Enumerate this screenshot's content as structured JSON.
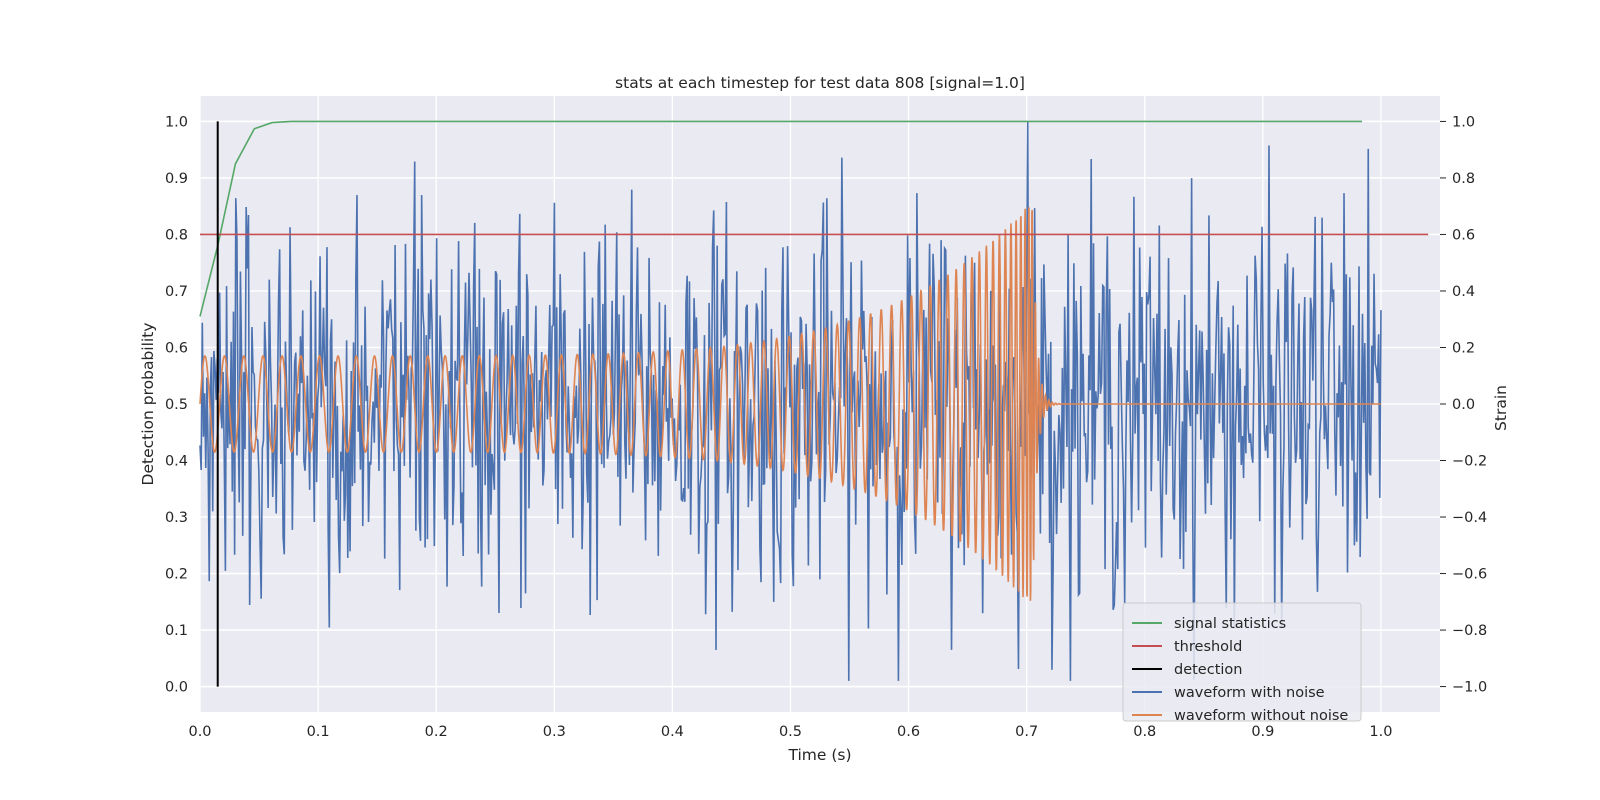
{
  "chart_data": {
    "type": "line",
    "title": "stats at each timestep for test data 808 [signal=1.0]",
    "xlabel": "Time (s)",
    "ylabel": "Detection probability",
    "y2label": "Strain",
    "xlim": [
      0.0,
      1.05
    ],
    "ylim": [
      -0.045,
      1.045
    ],
    "y2lim": [
      -1.09,
      1.09
    ],
    "x_ticks": [
      "0.0",
      "0.1",
      "0.2",
      "0.3",
      "0.4",
      "0.5",
      "0.6",
      "0.7",
      "0.8",
      "0.9",
      "1.0"
    ],
    "y_ticks": [
      "0.0",
      "0.1",
      "0.2",
      "0.3",
      "0.4",
      "0.5",
      "0.6",
      "0.7",
      "0.8",
      "0.9",
      "1.0"
    ],
    "y2_ticks": [
      "−1.0",
      "−0.8",
      "−0.6",
      "−0.4",
      "−0.2",
      "0.0",
      "0.2",
      "0.4",
      "0.6",
      "0.8",
      "1.0"
    ],
    "grid": true,
    "legend_position": "lower-right",
    "colors": {
      "plot_bg": "#eaeaf2",
      "grid": "#ffffff",
      "signal_statistics": "#55a868",
      "threshold": "#c44e52",
      "detection": "#000000",
      "waveform_with_noise": "#4c72b0",
      "waveform_without_noise": "#dd8452"
    },
    "series": [
      {
        "name": "signal statistics",
        "axis": "left",
        "x": [
          0.0,
          0.015,
          0.03,
          0.046,
          0.061,
          0.077,
          0.1,
          0.2,
          0.3,
          0.4,
          0.5,
          0.6,
          0.7,
          0.8,
          0.9,
          0.984
        ],
        "y": [
          0.655,
          0.78,
          0.925,
          0.987,
          0.998,
          1.0,
          1.0,
          1.0,
          1.0,
          1.0,
          1.0,
          1.0,
          1.0,
          1.0,
          1.0,
          1.0
        ]
      },
      {
        "name": "threshold",
        "axis": "left",
        "x": [
          0.0,
          1.04
        ],
        "y": [
          0.8,
          0.8
        ]
      },
      {
        "name": "detection",
        "axis": "left",
        "x": [
          0.015,
          0.015
        ],
        "y": [
          0.0,
          1.0
        ]
      },
      {
        "name": "waveform with noise",
        "axis": "right",
        "description": "noisy strain, roughly ±0.6, occasional spikes to ±0.9; max 1.0 at t≈0.701",
        "x_range": [
          0.0,
          1.0
        ],
        "amplitude_typical": 0.35,
        "peak": [
          0.701,
          1.0
        ]
      },
      {
        "name": "waveform without noise",
        "axis": "right",
        "description": "chirp: amplitude ~0.17 at t=0 growing to ~0.72 at t≈0.705, then ringdown to 0 by t≈0.72",
        "x_range": [
          0.0,
          1.0
        ],
        "amplitude_start": 0.17,
        "amplitude_peak": 0.72,
        "merger_time": 0.705
      }
    ]
  },
  "legend": {
    "items": [
      {
        "label": "signal statistics",
        "color": "#55a868"
      },
      {
        "label": "threshold",
        "color": "#c44e52"
      },
      {
        "label": "detection",
        "color": "#000000"
      },
      {
        "label": "waveform with noise",
        "color": "#4c72b0"
      },
      {
        "label": "waveform without noise",
        "color": "#dd8452"
      }
    ]
  }
}
